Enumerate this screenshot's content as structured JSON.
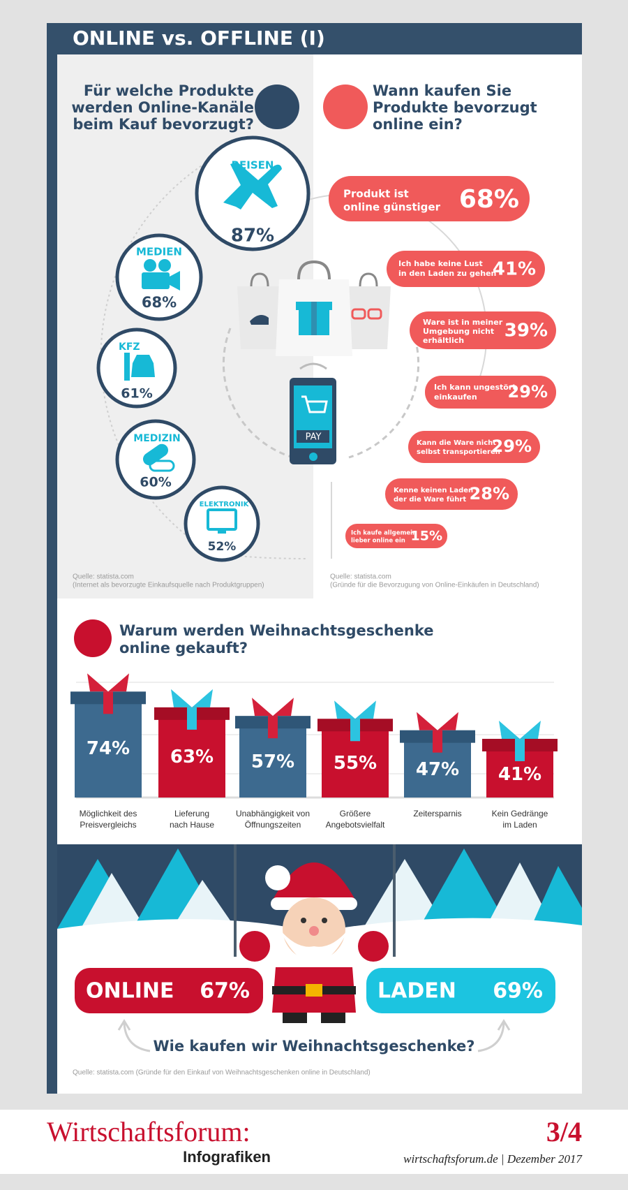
{
  "header": {
    "title": "ONLINE vs. OFFLINE (I)"
  },
  "products": {
    "question": [
      "Für welche Produkte",
      "werden Online-Kanäle",
      "beim Kauf bevorzugt?"
    ],
    "items": [
      {
        "label": "REISEN",
        "value": "87%"
      },
      {
        "label": "MEDIEN",
        "value": "68%"
      },
      {
        "label": "KFZ",
        "value": "61%"
      },
      {
        "label": "MEDIZIN",
        "value": "60%"
      },
      {
        "label": "ELEKTRONIK",
        "value": "52%"
      }
    ],
    "source": [
      "Quelle: statista.com",
      "(Internet als bevorzugte Einkaufsquelle nach Produktgruppen)"
    ]
  },
  "reasons": {
    "question": [
      "Wann kaufen Sie",
      "Produkte bevorzugt",
      "online ein?"
    ],
    "items": [
      {
        "label": [
          "Produkt ist",
          "online günstiger"
        ],
        "value": "68%"
      },
      {
        "label": [
          "Ich habe keine Lust",
          "in den Laden zu gehen"
        ],
        "value": "41%"
      },
      {
        "label": [
          "Ware ist in meiner",
          "Umgebung nicht",
          "erhältlich"
        ],
        "value": "39%"
      },
      {
        "label": [
          "Ich kann ungestört",
          "einkaufen"
        ],
        "value": "29%"
      },
      {
        "label": [
          "Kann die Ware nicht",
          "selbst transportieren"
        ],
        "value": "29%"
      },
      {
        "label": [
          "Kenne keinen Laden",
          "der die Ware führt"
        ],
        "value": "28%"
      },
      {
        "label": [
          "Ich kaufe allgemein",
          "lieber online ein"
        ],
        "value": "15%"
      }
    ],
    "source": [
      "Quelle: statista.com",
      "(Gründe für die Bevorzugung von Online-Einkäufen in Deutschland)"
    ]
  },
  "phone": {
    "button": "PAY"
  },
  "gifts": {
    "title": [
      "Warum werden Weihnachtsgeschenke",
      "online gekauft?"
    ],
    "categories": [
      [
        "Möglichkeit des",
        "Preisvergleichs"
      ],
      [
        "Lieferung",
        "nach Hause"
      ],
      [
        "Unabhängigkeit von",
        "Öffnungszeiten"
      ],
      [
        "Größere",
        "Angebotsvielfalt"
      ],
      [
        "Zeitersparnis"
      ],
      [
        "Kein Gedränge",
        "im Laden"
      ]
    ],
    "values": [
      74,
      63,
      57,
      55,
      47,
      41
    ],
    "value_labels": [
      "74%",
      "63%",
      "57%",
      "55%",
      "47%",
      "41%"
    ]
  },
  "christmas": {
    "online": {
      "label": "ONLINE",
      "value": "67%"
    },
    "laden": {
      "label": "LADEN",
      "value": "69%"
    },
    "question": "Wie kaufen wir Weihnachtsgeschenke?",
    "source": "Quelle: statista.com (Gründe für den Einkauf von Weihnachtsgeschenken online in Deutschland)"
  },
  "footer": {
    "brand": "Wirtschaftsforum:",
    "sub": "Infografiken",
    "page": "3/4",
    "site": "wirtschaftsforum.de | Dezember 2017"
  }
}
